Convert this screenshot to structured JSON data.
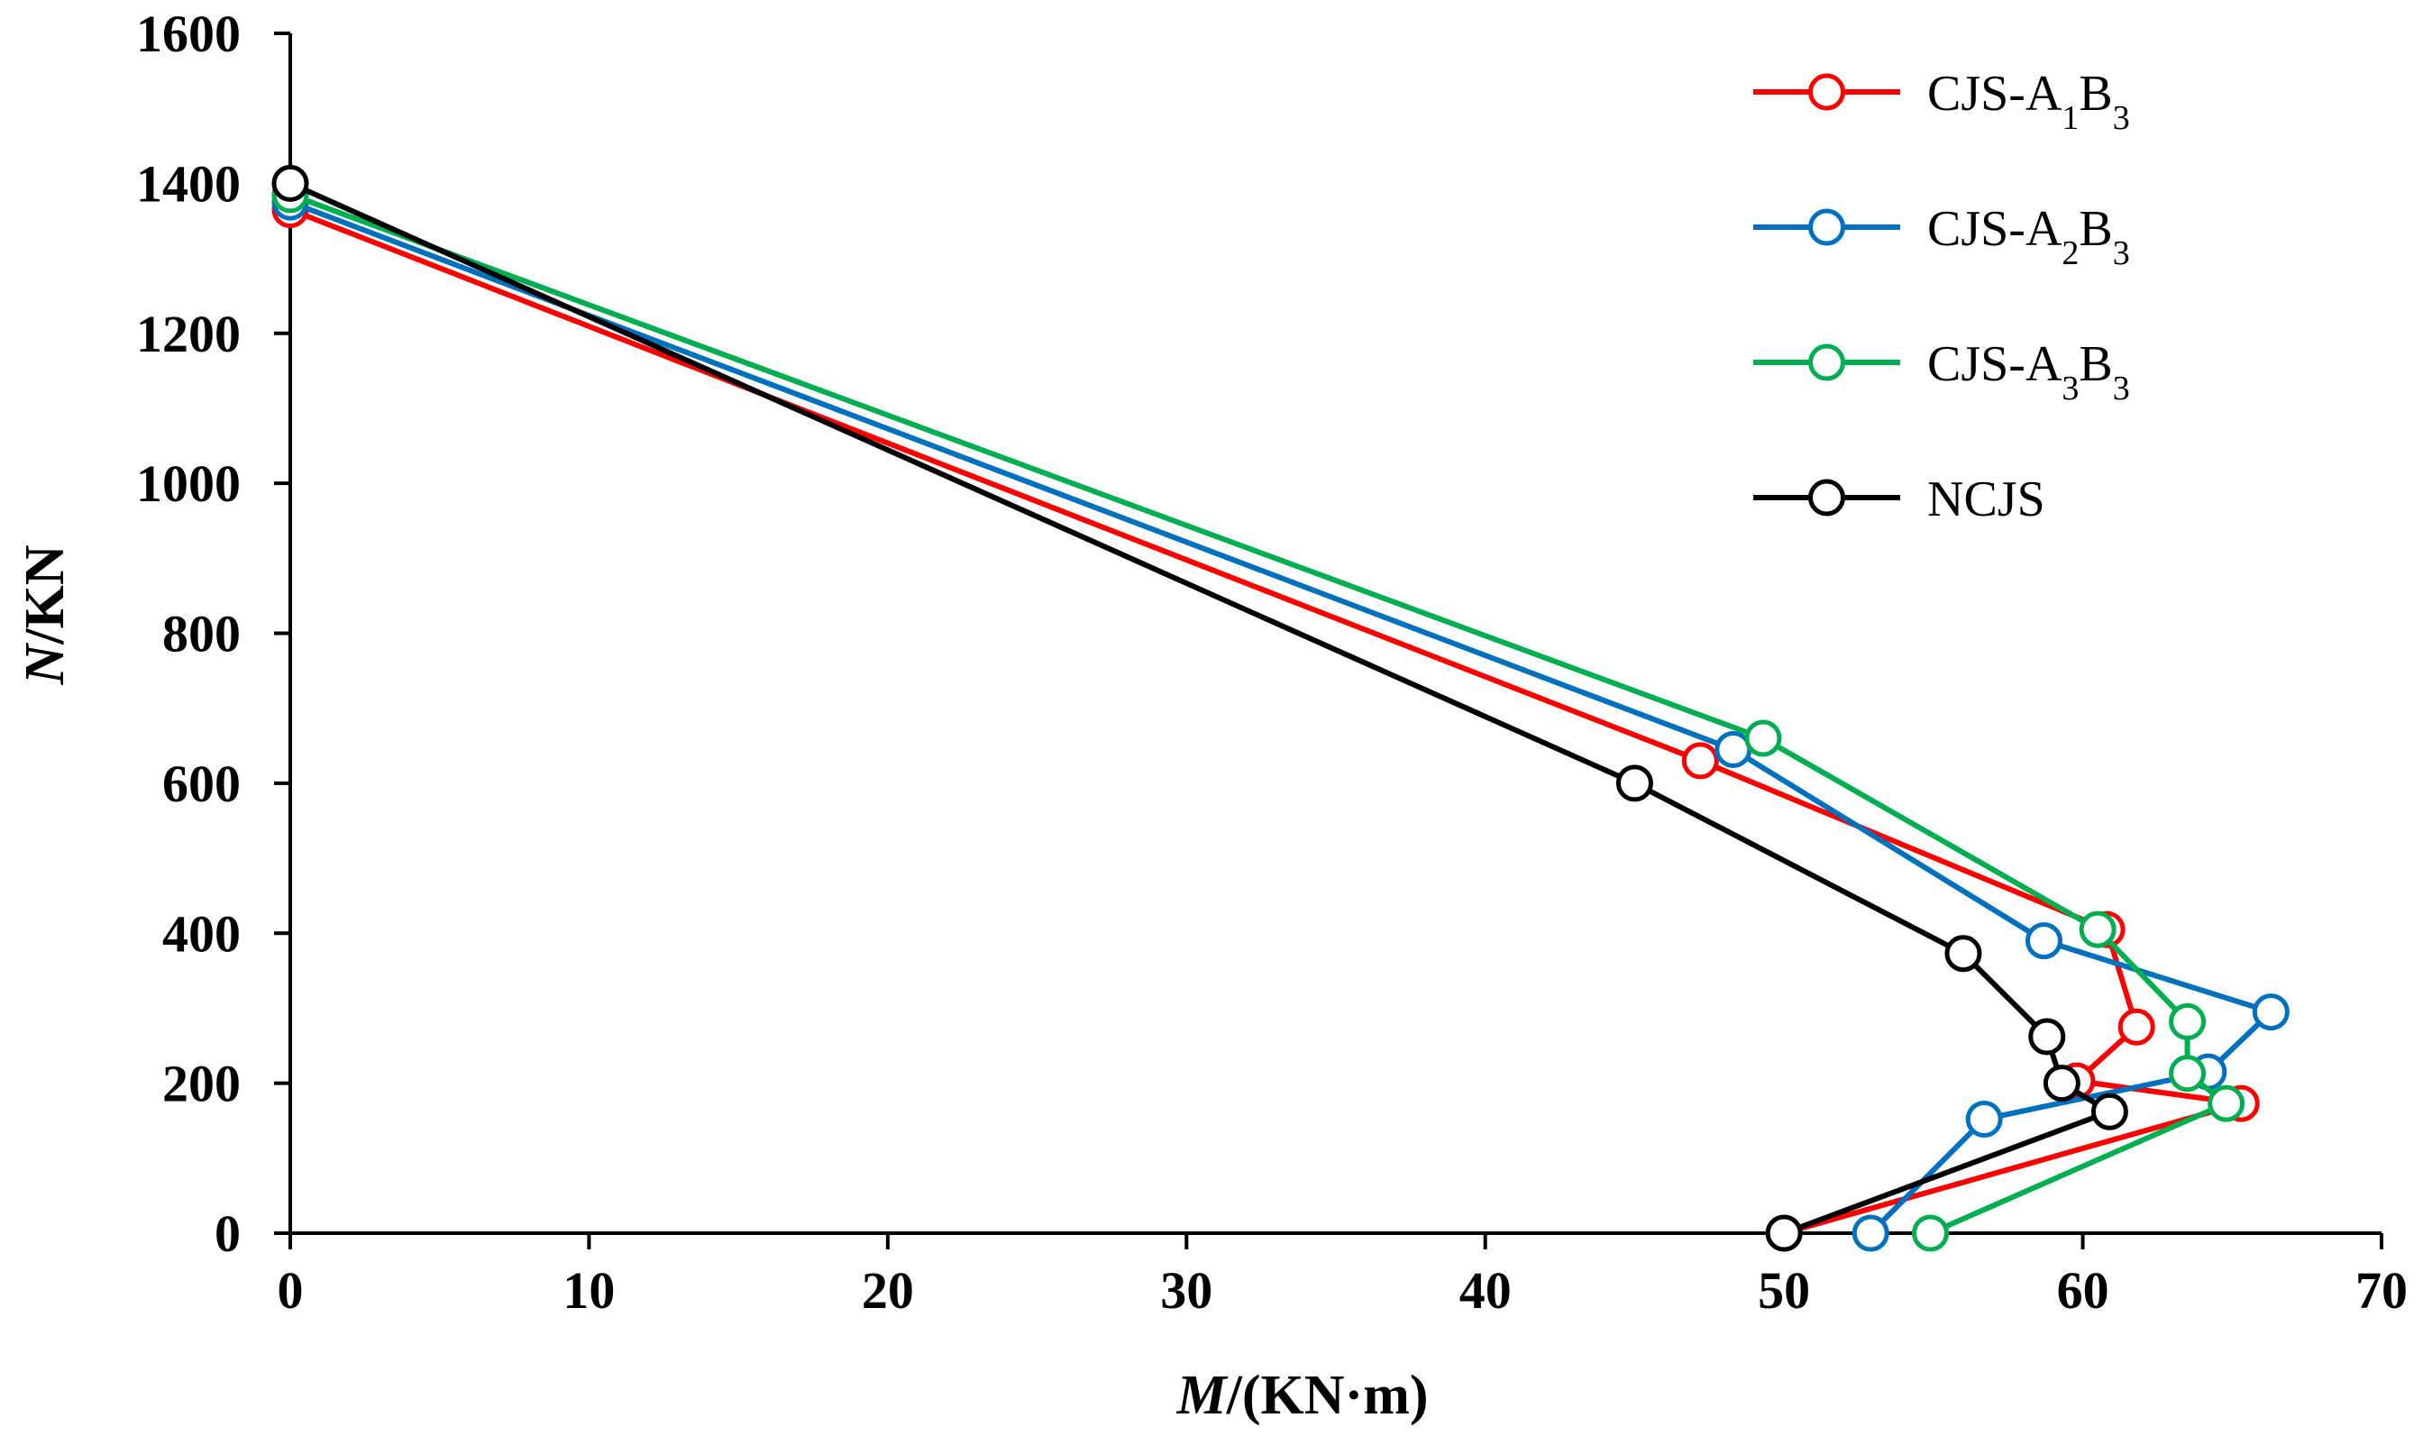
{
  "chart_data": {
    "type": "line",
    "title": "",
    "xlabel_italic": "M",
    "xlabel_rest": "/(KN·m)",
    "ylabel_italic": "N",
    "ylabel_rest": "/KN",
    "xlim": [
      0,
      70
    ],
    "ylim": [
      0,
      1600
    ],
    "xticks": [
      0,
      10,
      20,
      30,
      40,
      50,
      60,
      70
    ],
    "yticks": [
      0,
      200,
      400,
      600,
      800,
      1000,
      1200,
      1400,
      1600
    ],
    "grid": false,
    "legend_position": "top-right",
    "series": [
      {
        "name": "CJS-A1B3",
        "label_parts": [
          "CJS-A",
          "1",
          "B",
          "3"
        ],
        "color": "#ff0000",
        "points": [
          [
            0,
            1365
          ],
          [
            47.2,
            630
          ],
          [
            60.8,
            405
          ],
          [
            61.8,
            275
          ],
          [
            59.8,
            203
          ],
          [
            65.3,
            173
          ],
          [
            50.0,
            0
          ]
        ]
      },
      {
        "name": "CJS-A2B3",
        "label_parts": [
          "CJS-A",
          "2",
          "B",
          "3"
        ],
        "color": "#0070c0",
        "points": [
          [
            0,
            1375
          ],
          [
            48.3,
            645
          ],
          [
            58.7,
            390
          ],
          [
            66.3,
            295
          ],
          [
            64.2,
            215
          ],
          [
            56.7,
            152
          ],
          [
            52.9,
            0
          ]
        ]
      },
      {
        "name": "CJS-A3B3",
        "label_parts": [
          "CJS-A",
          "3",
          "B",
          "3"
        ],
        "color": "#00b050",
        "points": [
          [
            0,
            1385
          ],
          [
            49.3,
            660
          ],
          [
            60.5,
            405
          ],
          [
            63.5,
            282
          ],
          [
            63.5,
            213
          ],
          [
            64.8,
            173
          ],
          [
            54.9,
            0
          ]
        ]
      },
      {
        "name": "NCJS",
        "label_parts": [
          "NCJS",
          "",
          "",
          ""
        ],
        "color": "#000000",
        "points": [
          [
            0,
            1400
          ],
          [
            45.0,
            600
          ],
          [
            56.0,
            373
          ],
          [
            58.8,
            262
          ],
          [
            59.3,
            200
          ],
          [
            60.9,
            162
          ],
          [
            50.0,
            0
          ]
        ]
      }
    ]
  }
}
